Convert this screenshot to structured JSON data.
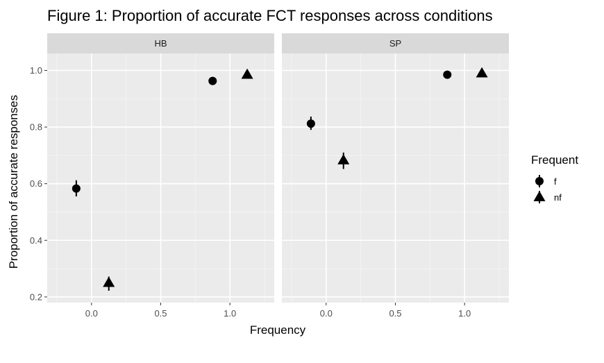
{
  "chart_data": {
    "type": "scatter",
    "title": "Figure 1: Proportion of accurate FCT responses across conditions",
    "xlabel": "Frequency",
    "ylabel": "Proportion of accurate responses",
    "xlim": [
      -0.32,
      1.32
    ],
    "ylim": [
      0.18,
      1.06
    ],
    "x_ticks": [
      0.0,
      0.5,
      1.0
    ],
    "x_tick_labels": [
      "0.0",
      "0.5",
      "1.0"
    ],
    "y_ticks": [
      0.2,
      0.4,
      0.6,
      0.8,
      1.0
    ],
    "y_tick_labels": [
      "0.2",
      "0.4",
      "0.6",
      "0.8",
      "1.0"
    ],
    "grid": true,
    "legend": {
      "title": "Frequent",
      "placement": "right",
      "entries": [
        {
          "label": "f",
          "shape": "circle"
        },
        {
          "label": "nf",
          "shape": "triangle"
        }
      ]
    },
    "panels": [
      {
        "label": "HB",
        "series": [
          {
            "name": "f",
            "shape": "circle",
            "points": [
              {
                "x": -0.11,
                "y": 0.583,
                "ymin": 0.555,
                "ymax": 0.612
              },
              {
                "x": 0.875,
                "y": 0.963,
                "ymin": 0.955,
                "ymax": 0.97
              }
            ]
          },
          {
            "name": "nf",
            "shape": "triangle",
            "points": [
              {
                "x": 0.125,
                "y": 0.25,
                "ymin": 0.222,
                "ymax": 0.272
              },
              {
                "x": 1.125,
                "y": 0.985,
                "ymin": 0.978,
                "ymax": 0.992
              }
            ]
          }
        ]
      },
      {
        "label": "SP",
        "series": [
          {
            "name": "f",
            "shape": "circle",
            "points": [
              {
                "x": -0.11,
                "y": 0.812,
                "ymin": 0.79,
                "ymax": 0.837
              },
              {
                "x": 0.875,
                "y": 0.985,
                "ymin": 0.978,
                "ymax": 0.991
              }
            ]
          },
          {
            "name": "nf",
            "shape": "triangle",
            "points": [
              {
                "x": 0.125,
                "y": 0.683,
                "ymin": 0.652,
                "ymax": 0.71
              },
              {
                "x": 1.125,
                "y": 0.99,
                "ymin": 0.984,
                "ymax": 0.996
              }
            ]
          }
        ]
      }
    ]
  }
}
